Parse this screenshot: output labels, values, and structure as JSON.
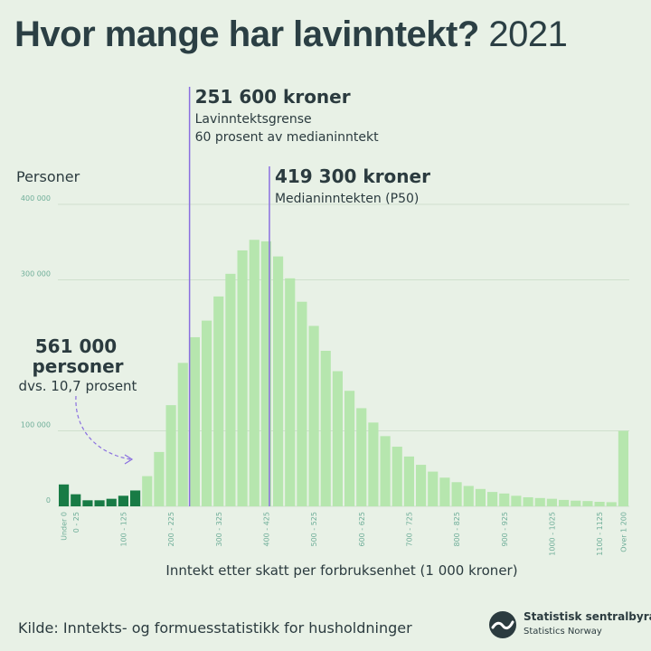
{
  "header": {
    "title_main": "Hvor mange har lavinntekt?",
    "title_year": "2021"
  },
  "colors": {
    "low_income": "#187b45",
    "rest": "#b6e6ae",
    "line": "#8a6fe0",
    "grid": "#cfe0cd",
    "tick": "#6fae99",
    "text": "#2b3b3f"
  },
  "chart_data": {
    "type": "bar",
    "ylabel": "Personer",
    "xlabel": "Inntekt etter skatt per forbruksenhet (1 000 kroner)",
    "ylim": [
      0,
      400000
    ],
    "yticks": [
      0,
      100000,
      300000,
      400000
    ],
    "ytick_labels": [
      "0",
      "100 000",
      "300 000",
      "400 000"
    ],
    "bin_width": 25,
    "low_income_bins": 7,
    "values": [
      29000,
      16000,
      8000,
      8000,
      10000,
      14000,
      21000,
      40000,
      72000,
      134000,
      190000,
      224000,
      246000,
      278000,
      308000,
      339000,
      353000,
      351000,
      331000,
      302000,
      271000,
      239000,
      206000,
      179000,
      153000,
      130000,
      111000,
      93000,
      79000,
      66000,
      55000,
      46000,
      38000,
      32000,
      27000,
      23000,
      19000,
      17000,
      14000,
      12000,
      11000,
      10000,
      8500,
      7500,
      7000,
      6000,
      5500,
      100000
    ],
    "xtick_labels": [
      {
        "bin": 0,
        "label": "Under 0"
      },
      {
        "bin": 1,
        "label": "0 - 25"
      },
      {
        "bin": 5,
        "label": "100 - 125"
      },
      {
        "bin": 9,
        "label": "200 - 225"
      },
      {
        "bin": 13,
        "label": "300 - 325"
      },
      {
        "bin": 17,
        "label": "400 - 425"
      },
      {
        "bin": 21,
        "label": "500 - 525"
      },
      {
        "bin": 25,
        "label": "600 - 625"
      },
      {
        "bin": 29,
        "label": "700 - 725"
      },
      {
        "bin": 33,
        "label": "800 - 825"
      },
      {
        "bin": 37,
        "label": "900 - 925"
      },
      {
        "bin": 41,
        "label": "1000 - 1025"
      },
      {
        "bin": 45,
        "label": "1100 - 1125"
      },
      {
        "bin": 47,
        "label": "Over 1 200"
      }
    ],
    "reference_lines": [
      {
        "name": "low-income-line",
        "value_kr": 251600,
        "bin_position": 11.06,
        "heading": "251 600 kroner",
        "line1": "Lavinntektsgrense",
        "line2": "60 prosent av medianinntekt"
      },
      {
        "name": "median-line",
        "value_kr": 419300,
        "bin_position": 17.77,
        "heading": "419 300 kroner",
        "line1": "Medianinntekten (P50)"
      }
    ],
    "low_income_annotation": {
      "line1": "561 000",
      "line2": "personer",
      "line3": "dvs. 10,7 prosent"
    }
  },
  "footer": {
    "source": "Kilde: Inntekts- og formuesstatistikk for husholdninger",
    "logo_name": "Statistisk sentralbyrå",
    "logo_name_en": "Statistics Norway"
  }
}
